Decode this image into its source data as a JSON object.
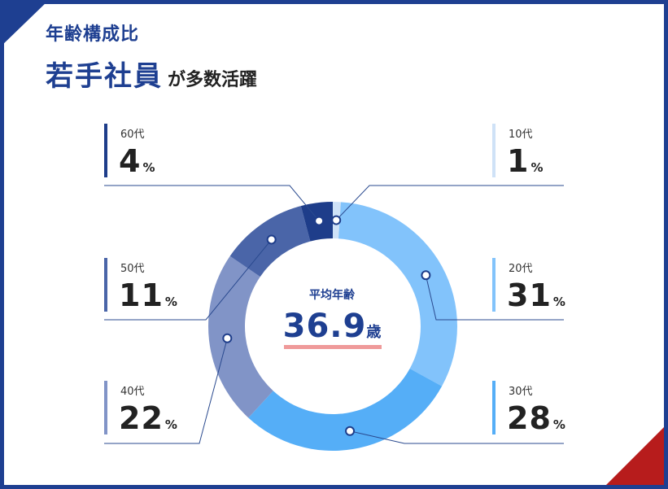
{
  "header": {
    "subtitle": "年齢構成比",
    "title_main": "若手社員",
    "title_rest": "が多数活躍"
  },
  "center": {
    "label": "平均年齢",
    "value": "36.9",
    "unit": "歳"
  },
  "percent_symbol": "%",
  "colors": {
    "frame": "#1e3f91",
    "accent_corner": "#b71c1c",
    "underline": "#ef9a9a"
  },
  "chart_data": {
    "type": "pie",
    "style": "donut",
    "categories": [
      "10代",
      "20代",
      "30代",
      "40代",
      "50代",
      "60代"
    ],
    "values": [
      1,
      31,
      28,
      22,
      11,
      4
    ],
    "colors": [
      "#cfe2f7",
      "#82c3fb",
      "#55aef7",
      "#8194c7",
      "#4a65a8",
      "#1e3d8a"
    ],
    "title": "年齢構成比",
    "legend": "sides"
  }
}
